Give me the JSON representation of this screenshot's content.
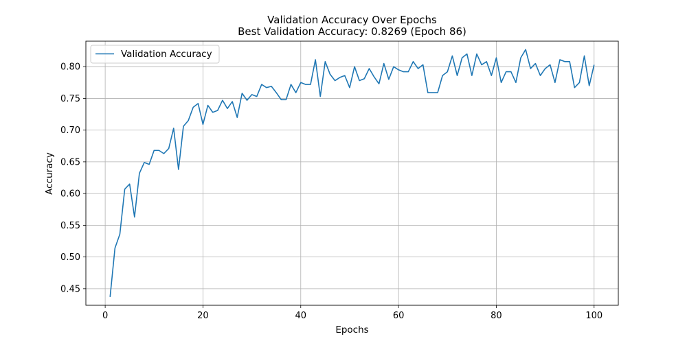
{
  "chart_data": {
    "type": "line",
    "title": "Validation Accuracy Over Epochs",
    "subtitle": "Best Validation Accuracy: 0.8269 (Epoch 86)",
    "xlabel": "Epochs",
    "ylabel": "Accuracy",
    "xlim": [
      -3.95,
      104.95
    ],
    "ylim": [
      0.4239,
      0.8402
    ],
    "xticks": [
      0,
      20,
      40,
      60,
      80,
      100
    ],
    "xtick_labels": [
      "0",
      "20",
      "40",
      "60",
      "80",
      "100"
    ],
    "yticks": [
      0.45,
      0.5,
      0.55,
      0.6,
      0.65,
      0.7,
      0.75,
      0.8
    ],
    "ytick_labels": [
      "0.45",
      "0.50",
      "0.55",
      "0.60",
      "0.65",
      "0.70",
      "0.75",
      "0.80"
    ],
    "grid": true,
    "legend_position": "upper-left",
    "series": [
      {
        "name": "Validation Accuracy",
        "color": "#1f77b4",
        "x": [
          1,
          2,
          3,
          4,
          5,
          6,
          7,
          8,
          9,
          10,
          11,
          12,
          13,
          14,
          15,
          16,
          17,
          18,
          19,
          20,
          21,
          22,
          23,
          24,
          25,
          26,
          27,
          28,
          29,
          30,
          31,
          32,
          33,
          34,
          35,
          36,
          37,
          38,
          39,
          40,
          41,
          42,
          43,
          44,
          45,
          46,
          47,
          48,
          49,
          50,
          51,
          52,
          53,
          54,
          55,
          56,
          57,
          58,
          59,
          60,
          61,
          62,
          63,
          64,
          65,
          66,
          67,
          68,
          69,
          70,
          71,
          72,
          73,
          74,
          75,
          76,
          77,
          78,
          79,
          80,
          81,
          82,
          83,
          84,
          85,
          86,
          87,
          88,
          89,
          90,
          91,
          92,
          93,
          94,
          95,
          96,
          97,
          98,
          99,
          100
        ],
        "values": [
          0.437,
          0.514,
          0.536,
          0.607,
          0.615,
          0.563,
          0.632,
          0.649,
          0.646,
          0.668,
          0.668,
          0.663,
          0.671,
          0.703,
          0.638,
          0.706,
          0.715,
          0.736,
          0.742,
          0.709,
          0.739,
          0.728,
          0.731,
          0.747,
          0.734,
          0.745,
          0.72,
          0.758,
          0.747,
          0.756,
          0.753,
          0.772,
          0.767,
          0.769,
          0.759,
          0.748,
          0.748,
          0.772,
          0.759,
          0.775,
          0.772,
          0.772,
          0.811,
          0.753,
          0.808,
          0.788,
          0.778,
          0.783,
          0.786,
          0.767,
          0.8,
          0.778,
          0.781,
          0.797,
          0.784,
          0.773,
          0.805,
          0.78,
          0.8,
          0.795,
          0.792,
          0.792,
          0.808,
          0.797,
          0.803,
          0.759,
          0.759,
          0.759,
          0.786,
          0.792,
          0.817,
          0.786,
          0.814,
          0.82,
          0.786,
          0.82,
          0.803,
          0.808,
          0.786,
          0.814,
          0.775,
          0.792,
          0.792,
          0.775,
          0.814,
          0.827,
          0.797,
          0.805,
          0.786,
          0.797,
          0.803,
          0.775,
          0.811,
          0.808,
          0.808,
          0.767,
          0.775,
          0.817,
          0.77,
          0.803
        ]
      }
    ]
  }
}
